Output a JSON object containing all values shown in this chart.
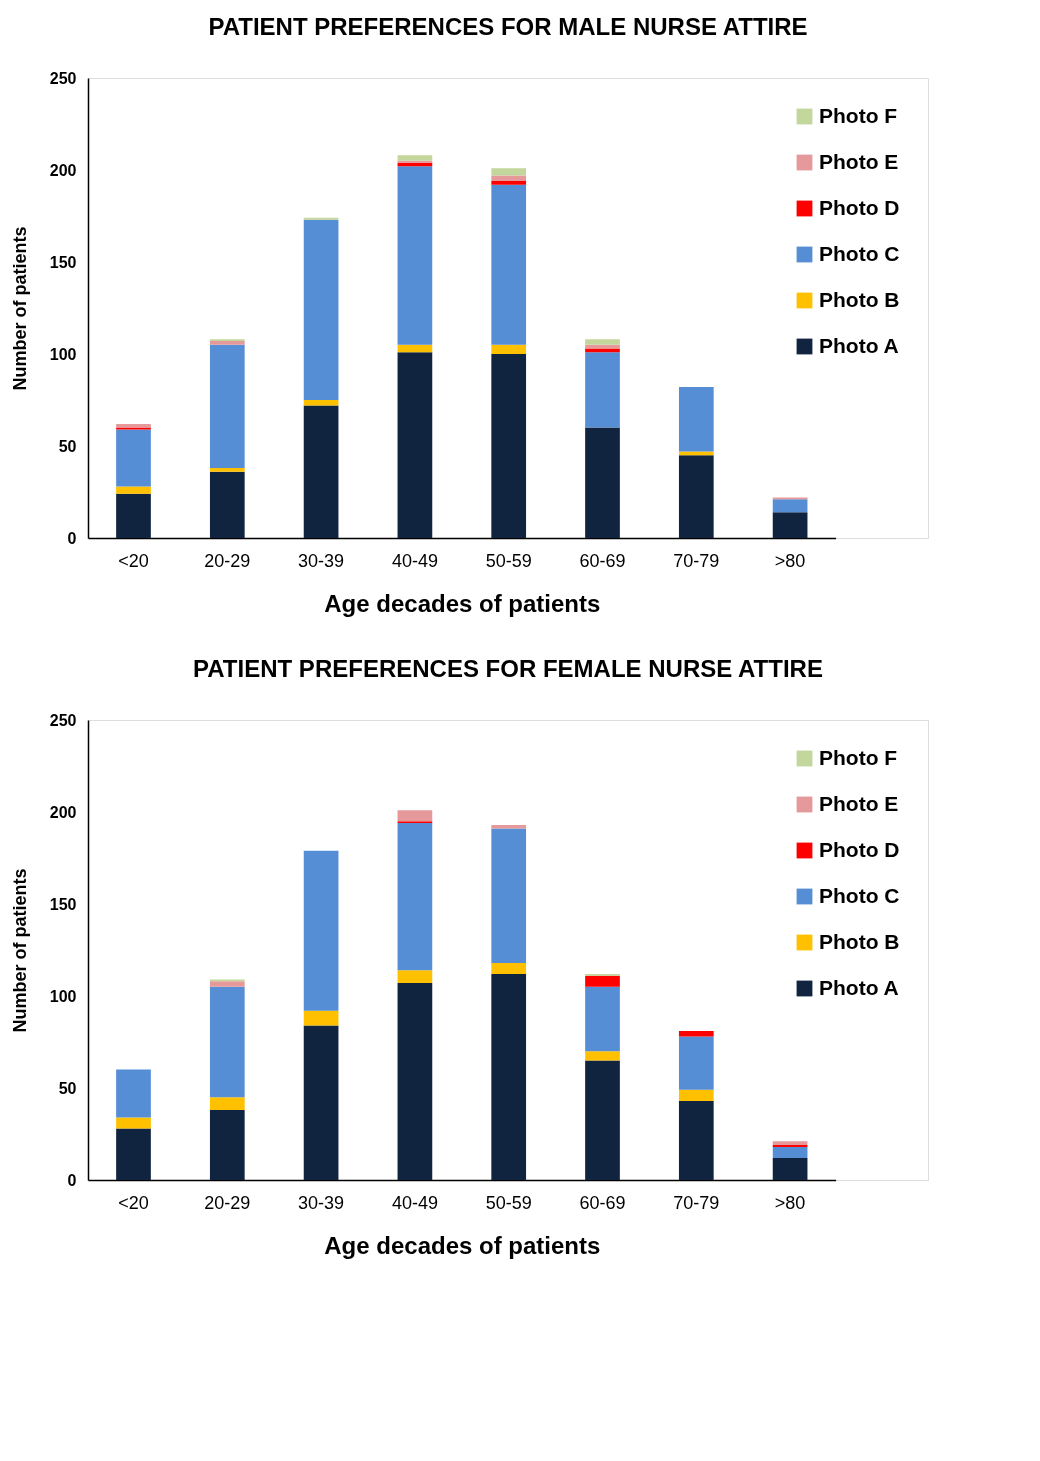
{
  "chart_data": [
    {
      "type": "bar",
      "title": "PATIENT PREFERENCES FOR MALE NURSE ATTIRE",
      "xlabel": "Age decades of patients",
      "ylabel": "Number of patients",
      "stacked": true,
      "ylim": [
        0,
        250
      ],
      "yticks": [
        0,
        50,
        100,
        150,
        200,
        250
      ],
      "grid": false,
      "legend": "top right",
      "categories": [
        "<20",
        "20-29",
        "30-39",
        "40-49",
        "50-59",
        "60-69",
        "70-79",
        ">80"
      ],
      "series": [
        {
          "name": "Photo A",
          "color": "#10243f",
          "values": [
            24,
            36,
            72,
            101,
            100,
            60,
            45,
            14
          ]
        },
        {
          "name": "Photo B",
          "color": "#ffc000",
          "values": [
            4,
            2,
            3,
            4,
            5,
            0,
            2,
            0
          ]
        },
        {
          "name": "Photo C",
          "color": "#558ed5",
          "values": [
            31,
            67,
            98,
            97,
            87,
            41,
            35,
            7
          ]
        },
        {
          "name": "Photo D",
          "color": "#ff0000",
          "values": [
            1,
            0,
            0,
            2,
            2,
            2,
            0,
            0
          ]
        },
        {
          "name": "Photo E",
          "color": "#e6999b",
          "values": [
            2,
            2,
            0,
            1,
            3,
            2,
            0,
            1
          ]
        },
        {
          "name": "Photo F",
          "color": "#c3d69b",
          "values": [
            0,
            1,
            1,
            3,
            4,
            3,
            0,
            0
          ]
        }
      ]
    },
    {
      "type": "bar",
      "title": "PATIENT PREFERENCES FOR FEMALE NURSE ATTIRE",
      "xlabel": "Age decades of patients",
      "ylabel": "Number of patients",
      "stacked": true,
      "ylim": [
        0,
        250
      ],
      "yticks": [
        0,
        50,
        100,
        150,
        200,
        250
      ],
      "grid": false,
      "legend": "top right",
      "categories": [
        "<20",
        "20-29",
        "30-39",
        "40-49",
        "50-59",
        "60-69",
        "70-79",
        ">80"
      ],
      "series": [
        {
          "name": "Photo A",
          "color": "#10243f",
          "values": [
            28,
            38,
            84,
            107,
            112,
            65,
            43,
            12
          ]
        },
        {
          "name": "Photo B",
          "color": "#ffc000",
          "values": [
            6,
            7,
            8,
            7,
            6,
            5,
            6,
            0
          ]
        },
        {
          "name": "Photo C",
          "color": "#558ed5",
          "values": [
            26,
            60,
            87,
            80,
            73,
            35,
            29,
            6
          ]
        },
        {
          "name": "Photo D",
          "color": "#ff0000",
          "values": [
            0,
            0,
            0,
            1,
            0,
            6,
            3,
            1
          ]
        },
        {
          "name": "Photo E",
          "color": "#e6999b",
          "values": [
            0,
            3,
            0,
            6,
            2,
            0,
            0,
            2
          ]
        },
        {
          "name": "Photo F",
          "color": "#c3d69b",
          "values": [
            0,
            1,
            0,
            0,
            0,
            1,
            0,
            0
          ]
        }
      ]
    }
  ]
}
